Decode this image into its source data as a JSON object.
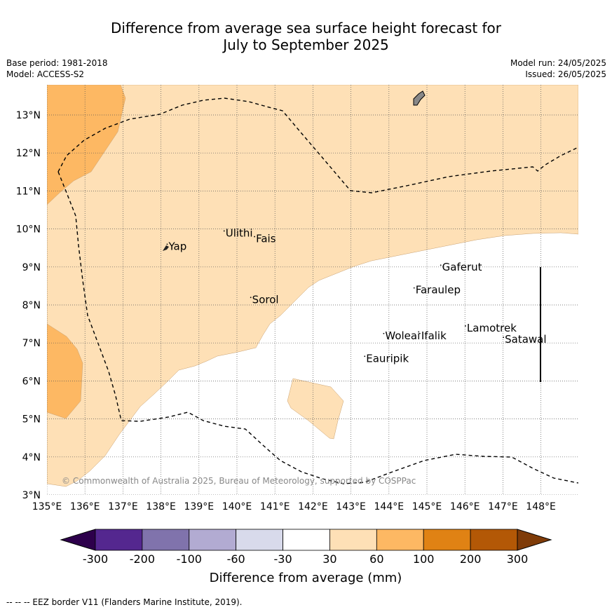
{
  "title_line1": "Difference from average sea surface height forecast for",
  "title_line2": "July to September 2025",
  "meta_left": [
    "Base period: 1981-2018",
    "Model: ACCESS-S2"
  ],
  "meta_right": [
    "Model run: 24/05/2025",
    "Issued: 26/05/2025"
  ],
  "map": {
    "lon_range": [
      135,
      149
    ],
    "lat_range": [
      3,
      13.8
    ],
    "lon_ticks": [
      "135°E",
      "136°E",
      "137°E",
      "138°E",
      "139°E",
      "140°E",
      "141°E",
      "142°E",
      "143°E",
      "144°E",
      "145°E",
      "146°E",
      "147°E",
      "148°E"
    ],
    "lat_ticks": [
      "3°N",
      "4°N",
      "5°N",
      "6°N",
      "7°N",
      "8°N",
      "9°N",
      "10°N",
      "11°N",
      "12°N",
      "13°N"
    ],
    "grid": "dotted",
    "places": [
      {
        "name": "Yap",
        "lon": 138.2,
        "lat": 9.45
      },
      {
        "name": "Ulithi",
        "lon": 139.7,
        "lat": 9.8
      },
      {
        "name": "Fais",
        "lon": 140.5,
        "lat": 9.65
      },
      {
        "name": "Sorol",
        "lon": 140.4,
        "lat": 8.05
      },
      {
        "name": "Gaferut",
        "lon": 145.4,
        "lat": 8.9
      },
      {
        "name": "Faraulep",
        "lon": 144.7,
        "lat": 8.3
      },
      {
        "name": "Woleai",
        "lon": 143.9,
        "lat": 7.1
      },
      {
        "name": "Ifalik",
        "lon": 144.85,
        "lat": 7.1
      },
      {
        "name": "Lamotrek",
        "lon": 146.05,
        "lat": 7.3
      },
      {
        "name": "Satawal",
        "lon": 147.05,
        "lat": 7.0
      },
      {
        "name": "Eauripik",
        "lon": 143.4,
        "lat": 6.5
      }
    ],
    "copyright": "© Commonwealth of Australia 2025, Bureau of Meteorology, supported by COSPPac"
  },
  "colorbar": {
    "colors": [
      "#54278f",
      "#8073ac",
      "#b2abd2",
      "#d8daeb",
      "#ffffff",
      "#fee0b6",
      "#fdb863",
      "#e08214",
      "#b35806"
    ],
    "under_color": "#2d004b",
    "over_color": "#7f3b08",
    "labels": [
      "-300",
      "-200",
      "-100",
      "-60",
      "-30",
      "30",
      "60",
      "100",
      "200",
      "300"
    ],
    "title": "Difference from average (mm)"
  },
  "footnote": "--  --  -- EEZ border V11 (Flanders Marine Institute, 2019)."
}
